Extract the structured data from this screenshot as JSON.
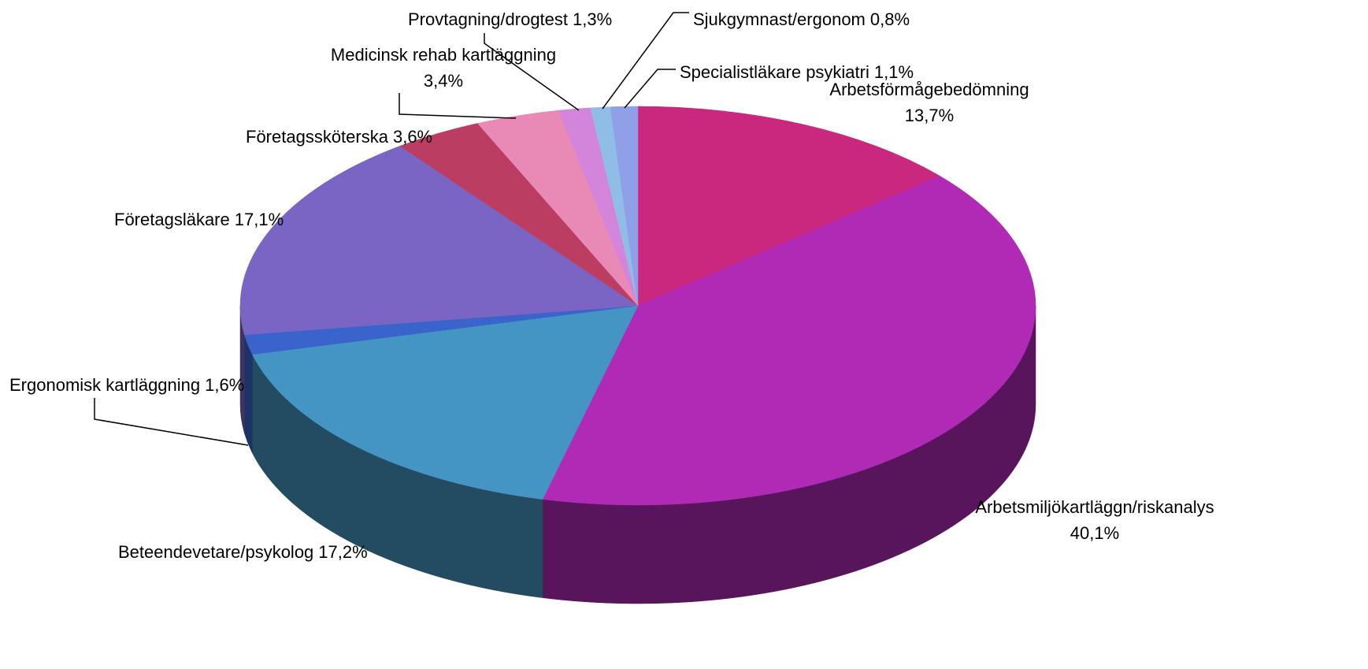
{
  "chart_data": {
    "type": "pie",
    "categories": [
      "Arbetsförmågebedömning",
      "Arbetsmiljökartläggn/riskanalys",
      "Beteendevetare/psykolog",
      "Ergonomisk kartläggning",
      "Företagsläkare",
      "Företagssköterska",
      "Medicinsk rehab kartläggning",
      "Provtagning/drogtest",
      "Sjukgymnast/ergonom",
      "Specialistläkare psykiatri"
    ],
    "values": [
      13.7,
      40.1,
      17.2,
      1.6,
      17.1,
      3.6,
      3.4,
      1.3,
      0.8,
      1.1
    ],
    "value_labels": [
      "13,7%",
      "40,1%",
      "17,2%",
      "1,6%",
      "17,1%",
      "3,6%",
      "3,4%",
      "1,3%",
      "0,8%",
      "1,1%"
    ],
    "colors": [
      "#c9287e",
      "#b02ab5",
      "#4595c4",
      "#3a64cc",
      "#7b65c4",
      "#bb3d62",
      "#e989b5",
      "#d385dc",
      "#8fbde6",
      "#8f9fe8"
    ]
  }
}
